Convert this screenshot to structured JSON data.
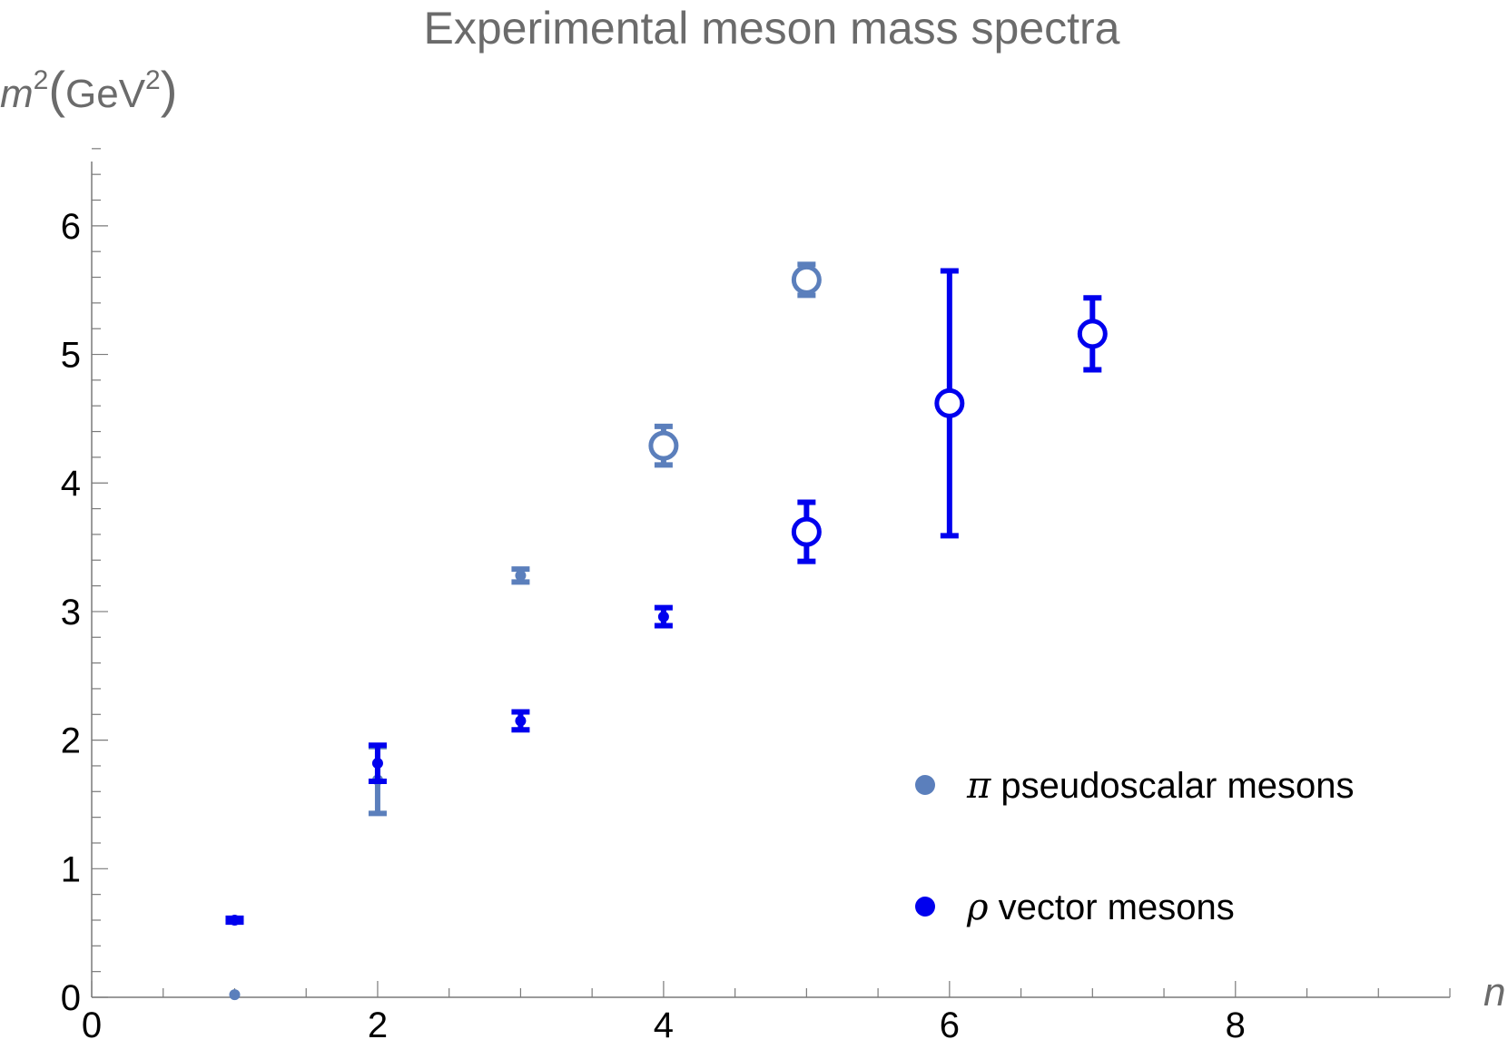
{
  "chart_data": {
    "type": "scatter",
    "title": "Experimental meson mass spectra",
    "ylabel": {
      "prefix": "m",
      "sup": "2",
      "unit": "GeV",
      "unit_sup": "2"
    },
    "xlabel": "n",
    "xlim": [
      0,
      9.5
    ],
    "ylim": [
      0,
      6.5
    ],
    "x_ticks": [
      0,
      2,
      4,
      6,
      8
    ],
    "y_ticks": [
      0,
      1,
      2,
      3,
      4,
      5,
      6
    ],
    "grid": false,
    "legend_position": "bottom-right",
    "series": [
      {
        "name": "pseudoscalar mesons",
        "symbol": "π",
        "color": "#5b7fbc",
        "points": [
          {
            "x": 1,
            "y": 0.02,
            "err": 0.0,
            "marker": "filled"
          },
          {
            "x": 2,
            "y": 1.69,
            "err": 0.26,
            "marker": "filled"
          },
          {
            "x": 3,
            "y": 3.28,
            "err": 0.05,
            "marker": "filled"
          },
          {
            "x": 4,
            "y": 4.29,
            "err": 0.15,
            "marker": "open"
          },
          {
            "x": 5,
            "y": 5.58,
            "err": 0.12,
            "marker": "open"
          }
        ]
      },
      {
        "name": "vector mesons",
        "symbol": "ρ",
        "color": "#0000ee",
        "points": [
          {
            "x": 1,
            "y": 0.6,
            "err": 0.015,
            "marker": "filled"
          },
          {
            "x": 2,
            "y": 1.82,
            "err": 0.14,
            "marker": "filled"
          },
          {
            "x": 3,
            "y": 2.15,
            "err": 0.07,
            "marker": "filled"
          },
          {
            "x": 4,
            "y": 2.96,
            "err": 0.07,
            "marker": "filled"
          },
          {
            "x": 5,
            "y": 3.62,
            "err": 0.23,
            "marker": "open"
          },
          {
            "x": 6,
            "y": 4.62,
            "err": 1.03,
            "marker": "open"
          },
          {
            "x": 7,
            "y": 5.16,
            "err": 0.28,
            "marker": "open"
          }
        ]
      }
    ]
  }
}
